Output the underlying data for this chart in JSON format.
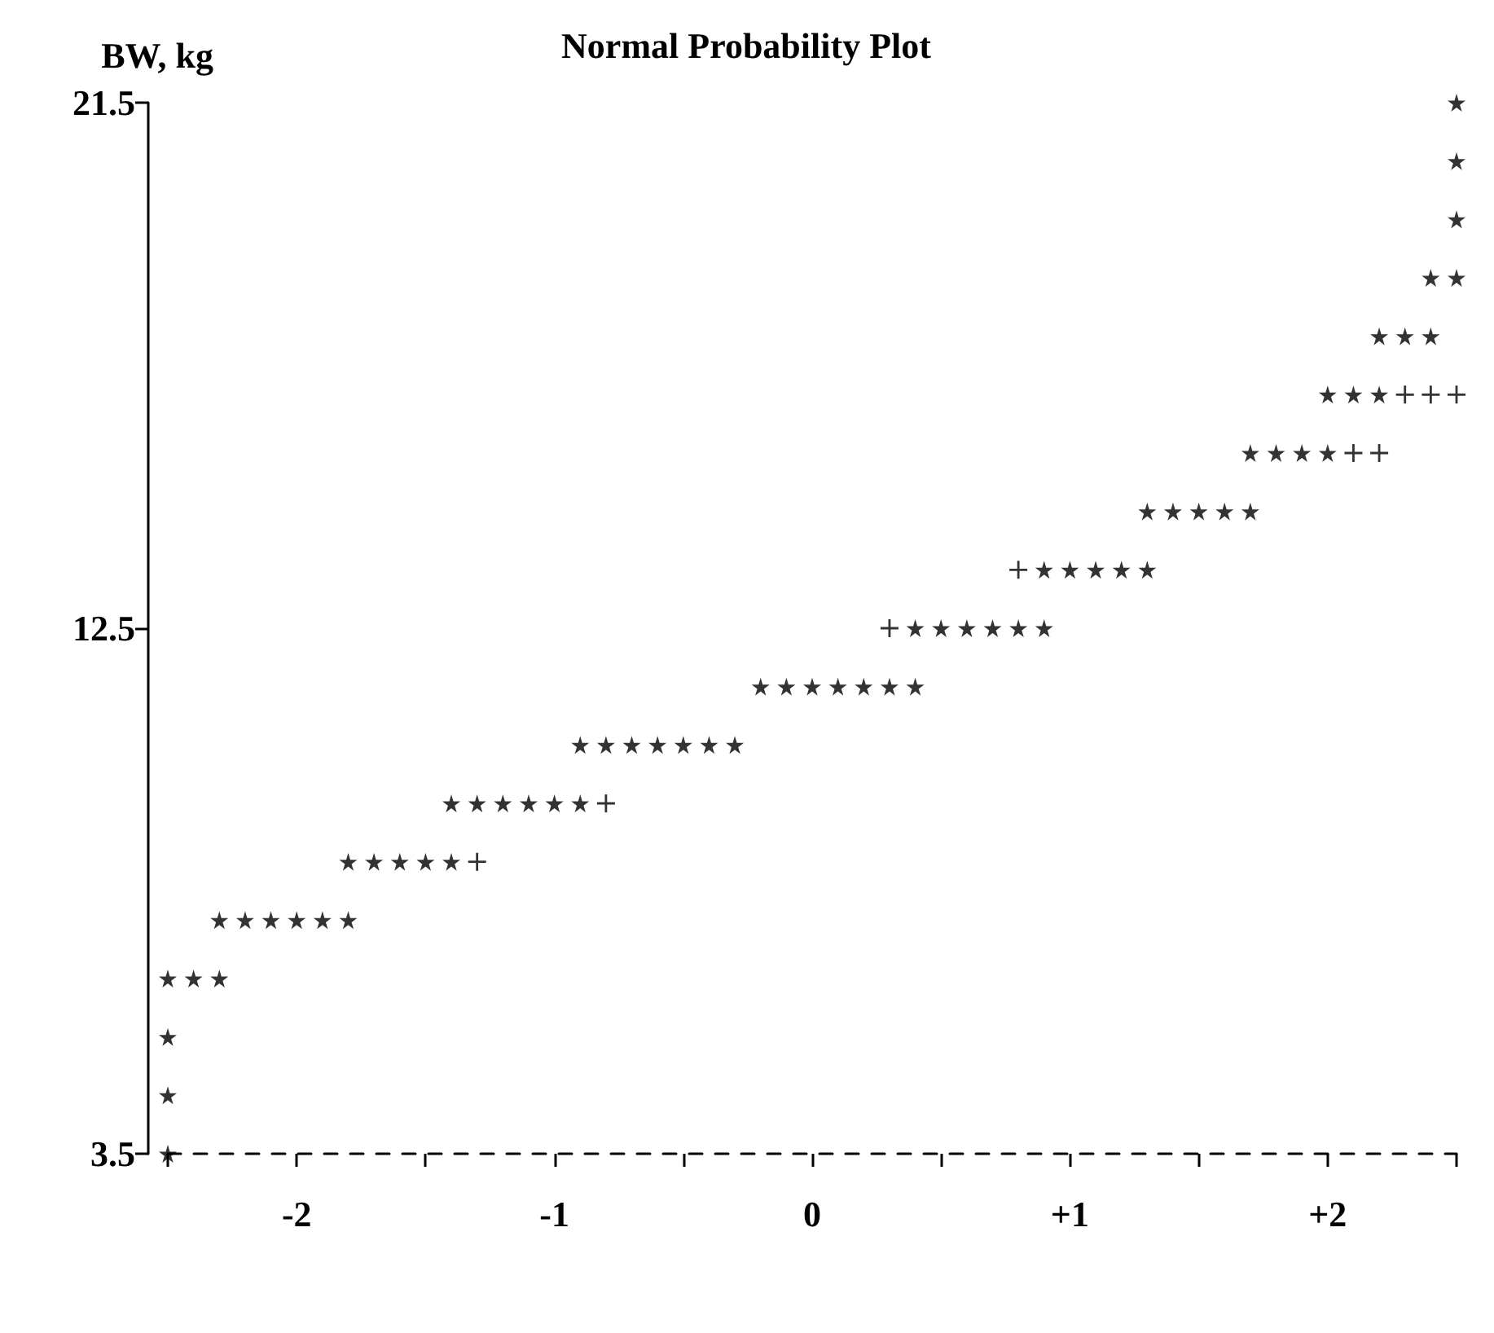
{
  "chart_data": {
    "type": "scatter",
    "title": "Normal Probability Plot",
    "ylabel": "BW, kg",
    "xlim": [
      -2.5,
      2.5
    ],
    "ylim": [
      3.5,
      21.5
    ],
    "xticks": [
      {
        "value": -2.5,
        "label": null
      },
      -2,
      {
        "value": -1.5,
        "label": null
      },
      -1,
      {
        "value": -0.5,
        "label": null
      },
      0,
      {
        "value": 0.5,
        "label": null
      },
      {
        "value": 1,
        "label": "+1"
      },
      {
        "value": 1.5,
        "label": null
      },
      {
        "value": 2,
        "label": "+2"
      },
      {
        "value": 2.5,
        "label": null
      }
    ],
    "yticks": [
      3.5,
      12.5,
      21.5
    ],
    "grid": false,
    "series": [
      {
        "color": "#000000",
        "marker": "star",
        "x": [
          -2.5,
          -2.5,
          -2.5,
          -2.5,
          -2.4,
          -2.3,
          -2.3,
          -2.2,
          -2.1,
          -2.0,
          -1.9,
          -1.8,
          -1.8,
          -1.7,
          -1.6,
          -1.5,
          -1.4,
          -1.4,
          -1.3,
          -1.2,
          -1.1,
          -1.0,
          -0.9,
          -0.9,
          -0.8,
          -0.7,
          -0.6,
          -0.5,
          -0.4,
          -0.3,
          -0.2,
          -0.1,
          0,
          0.1,
          0.2,
          0.3,
          0.4,
          0.4,
          0.5,
          0.6,
          0.7,
          0.8,
          0.9,
          0.9,
          1.0,
          1.1,
          1.2,
          1.3,
          1.3,
          1.4,
          1.5,
          1.6,
          1.7,
          1.7,
          1.8,
          1.9,
          2.0,
          2.0,
          2.1,
          2.2,
          2.2,
          2.3,
          2.4,
          2.4,
          2.5,
          2.5,
          2.5,
          2.5
        ],
        "values": [
          3.5,
          4.5,
          5.5,
          6.5,
          6.5,
          6.5,
          7.5,
          7.5,
          7.5,
          7.5,
          7.5,
          7.5,
          8.5,
          8.5,
          8.5,
          8.5,
          8.5,
          9.5,
          9.5,
          9.5,
          9.5,
          9.5,
          9.5,
          10.5,
          10.5,
          10.5,
          10.5,
          10.5,
          10.5,
          10.5,
          11.5,
          11.5,
          11.5,
          11.5,
          11.5,
          11.5,
          11.5,
          12.5,
          12.5,
          12.5,
          12.5,
          12.5,
          12.5,
          13.5,
          13.5,
          13.5,
          13.5,
          13.5,
          14.5,
          14.5,
          14.5,
          14.5,
          14.5,
          15.5,
          15.5,
          15.5,
          15.5,
          16.5,
          16.5,
          16.5,
          17.5,
          17.5,
          17.5,
          18.5,
          18.5,
          19.5,
          20.5,
          21.5
        ]
      },
      {
        "color": "#000000",
        "marker": "cross",
        "x": [
          -1.3,
          -0.8,
          0.3,
          0.8,
          2.1,
          2.2,
          2.3,
          2.4,
          2.5
        ],
        "values": [
          8.5,
          9.5,
          12.5,
          13.5,
          15.5,
          15.5,
          16.5,
          16.5,
          16.5
        ]
      }
    ]
  }
}
